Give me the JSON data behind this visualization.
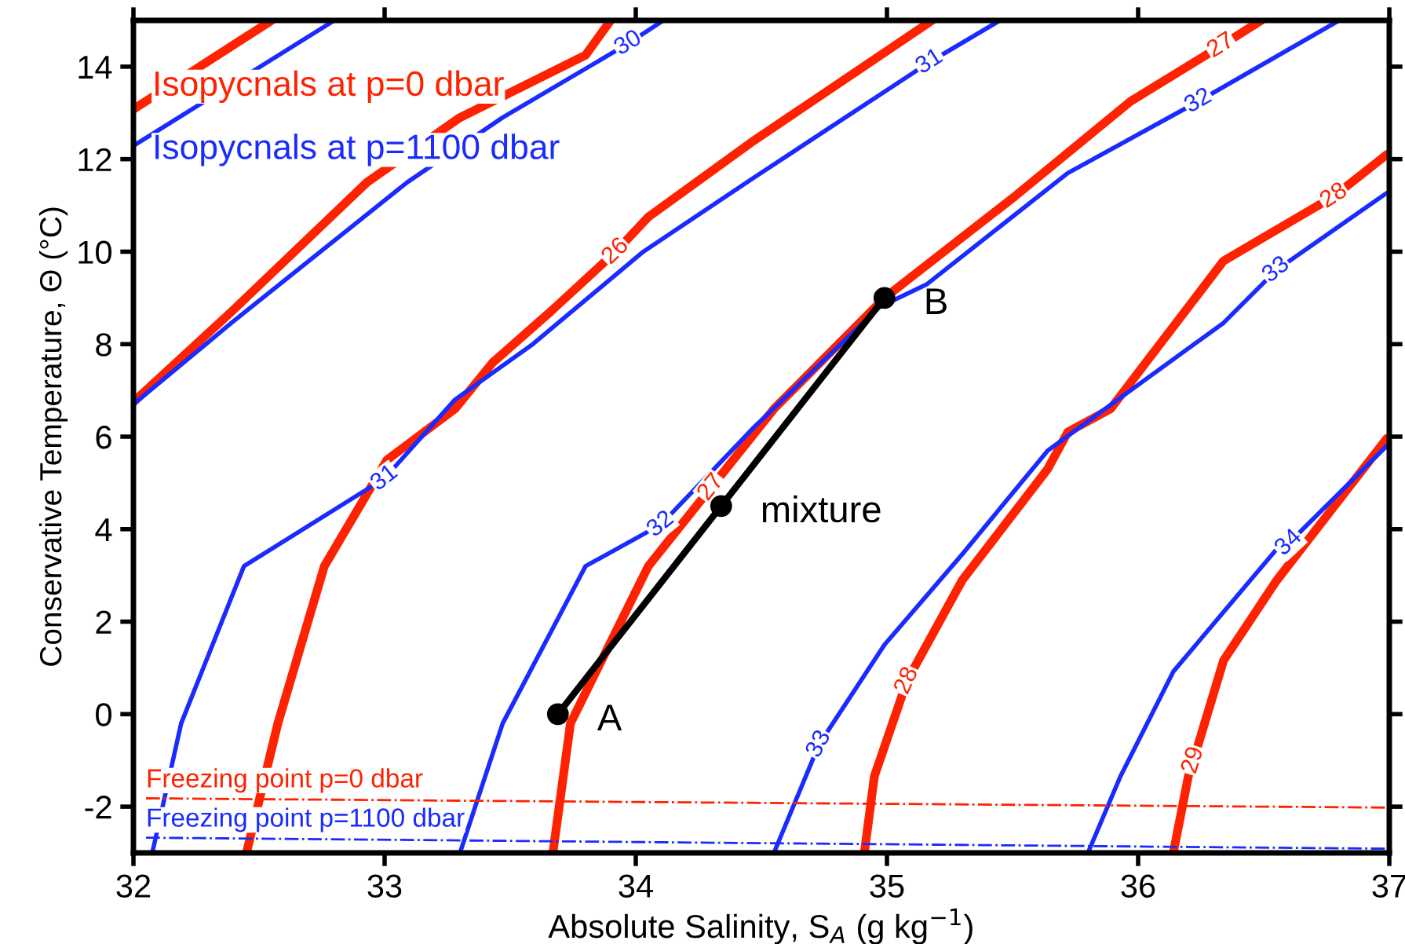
{
  "chart_data": {
    "type": "line",
    "xlabel": "Absolute Salinity, S$_{A}$ (g kg$^{−1}$)",
    "ylabel": "Conservative Temperature, Θ (°C)",
    "xlim": [
      32,
      37
    ],
    "ylim": [
      -3,
      15
    ],
    "xticks": [
      32,
      33,
      34,
      35,
      36,
      37
    ],
    "yticks": [
      -2,
      0,
      2,
      4,
      6,
      8,
      10,
      12,
      14
    ],
    "grid": false,
    "legend": "top left",
    "marker": "none",
    "line_style": "solid",
    "series": [
      {
        "name": "Isopycnals at p=0 dbar",
        "color": "#ff2200",
        "x": [
          32,
          32.55
        ],
        "values": [
          13.08,
          15
        ]
      },
      {
        "name": "Isopycnals at p=1100 dbar",
        "color": "#1a2bff",
        "x": [
          32,
          32.8
        ],
        "values": [
          12.29,
          15
        ]
      },
      {
        "color": "#ff2200",
        "x": [
          32,
          32.39,
          32.93,
          33.3,
          33.8,
          33.9
        ],
        "values": [
          6.75,
          8.7,
          11.5,
          12.9,
          14.25,
          15
        ]
      },
      {
        "color": "#1a2bff",
        "x": [
          32,
          32.39,
          33.09,
          33.47,
          33.97,
          34.11
        ],
        "values": [
          6.7,
          8.46,
          11.5,
          12.9,
          14.5,
          15
        ]
      },
      {
        "color": "#ff2200",
        "x": [
          32.45,
          32.575,
          32.76,
          33.01,
          33.28,
          33.43,
          33.66,
          33.92,
          34.05,
          34.47,
          35.18
        ],
        "values": [
          -3,
          -0.2,
          3.2,
          5.5,
          6.6,
          7.6,
          8.7,
          10.0,
          10.75,
          12.4,
          15
        ]
      },
      {
        "color": "#1a2bff",
        "x": [
          32.075,
          32.19,
          32.44,
          33.0,
          33.28,
          33.59,
          34.03,
          34.47,
          35.17,
          35.45
        ],
        "values": [
          -3,
          -0.2,
          3.2,
          5.1,
          6.8,
          8.0,
          10.0,
          11.6,
          14.1,
          15
        ]
      },
      {
        "color": "#ff2200",
        "x": [
          33.67,
          33.74,
          33.84,
          34.05,
          34.3,
          34.55,
          34.99,
          35.51,
          35.97,
          36.33,
          36.49
        ],
        "values": [
          -3,
          -0.2,
          0.9,
          3.2,
          4.9,
          6.6,
          9.0,
          11.2,
          13.25,
          14.45,
          15
        ]
      },
      {
        "color": "#1a2bff",
        "x": [
          33.3,
          33.47,
          33.8,
          34.1,
          34.47,
          34.97,
          35.16,
          35.72,
          36.24,
          36.8
        ],
        "values": [
          -3,
          -0.2,
          3.2,
          4.1,
          6.2,
          8.8,
          9.3,
          11.7,
          13.25,
          15
        ]
      },
      {
        "color": "#ff2200",
        "x": [
          34.91,
          34.95,
          35.08,
          35.3,
          35.64,
          35.72,
          35.89,
          36.34,
          36.78,
          36.99
        ],
        "values": [
          -3,
          -1.34,
          0.72,
          2.9,
          5.3,
          6.1,
          6.6,
          9.8,
          11.2,
          12.1
        ]
      },
      {
        "color": "#1a2bff",
        "x": [
          34.55,
          34.73,
          34.99,
          35.3,
          35.64,
          36.34,
          36.55,
          36.99
        ],
        "values": [
          -3,
          -0.65,
          1.5,
          3.46,
          5.7,
          8.46,
          9.6,
          11.27
        ]
      },
      {
        "color": "#ff2200",
        "x": [
          36.14,
          36.2,
          36.22,
          36.34,
          36.55,
          36.76,
          36.99
        ],
        "values": [
          -3,
          -1.34,
          -1.0,
          1.16,
          2.88,
          4.35,
          5.96
        ]
      },
      {
        "color": "#1a2bff",
        "x": [
          35.8,
          35.93,
          36.14,
          36.55,
          36.6,
          36.99
        ],
        "values": [
          -3,
          -1.34,
          0.92,
          3.56,
          3.7,
          5.8
        ]
      },
      {
        "color": "#ff2200",
        "line_style": "dashdot",
        "x": [
          32.05,
          37
        ],
        "values": [
          -1.82,
          -2.02
        ]
      },
      {
        "color": "#1a2bff",
        "line_style": "dashdot",
        "x": [
          32.05,
          37
        ],
        "values": [
          -2.67,
          -2.91
        ]
      },
      {
        "color": "#000000",
        "marker": "circle",
        "x": [
          33.69,
          34.34,
          34.99
        ],
        "values": [
          0,
          4.5,
          9.0
        ]
      }
    ],
    "annotations": [
      {
        "text": "Freezing point p=0 dbar",
        "x": 32.05,
        "y": -1.82
      },
      {
        "text": "Freezing point p=1100 dbar",
        "x": 32.05,
        "y": -2.67
      },
      {
        "text": "A",
        "x": 33.69,
        "y": 0
      },
      {
        "text": "mixture",
        "x": 34.34,
        "y": 4.5
      },
      {
        "text": "B",
        "x": 34.99,
        "y": 9.0
      },
      {
        "text": "30",
        "x": 33.97,
        "y": 14.5
      },
      {
        "text": "26",
        "x": 33.92,
        "y": 10.0
      },
      {
        "text": "31",
        "x": 33.0,
        "y": 5.1
      },
      {
        "text": "31",
        "x": 35.17,
        "y": 14.1
      },
      {
        "text": "27",
        "x": 34.3,
        "y": 4.9
      },
      {
        "text": "27",
        "x": 36.33,
        "y": 14.45
      },
      {
        "text": "32",
        "x": 34.1,
        "y": 4.1
      },
      {
        "text": "32",
        "x": 36.24,
        "y": 13.25
      },
      {
        "text": "28",
        "x": 35.08,
        "y": 0.72
      },
      {
        "text": "28",
        "x": 36.78,
        "y": 11.2
      },
      {
        "text": "33",
        "x": 34.73,
        "y": -0.65
      },
      {
        "text": "33",
        "x": 36.55,
        "y": 9.6
      },
      {
        "text": "29",
        "x": 36.22,
        "y": -1.0
      },
      {
        "text": "34",
        "x": 36.6,
        "y": 3.7
      }
    ]
  }
}
